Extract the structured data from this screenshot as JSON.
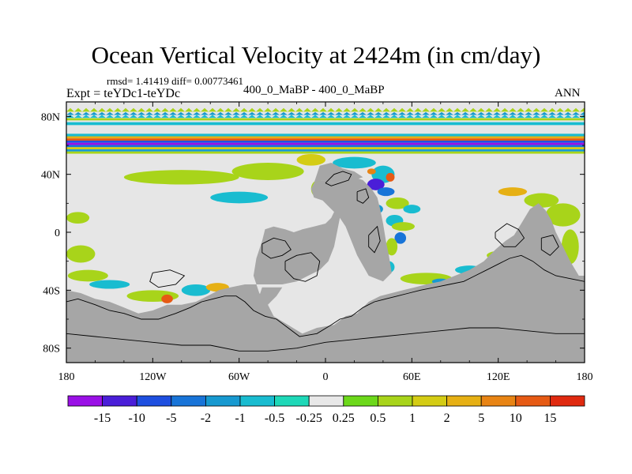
{
  "title": "Ocean Vertical Velocity at 2424m (in cm/day)",
  "stats": "rmsd= 1.41419 diff= 0.00773461",
  "expt": "Expt = teYDc1-teYDc",
  "center_label": "400_0_MaBP - 400_0_MaBP",
  "season": "ANN",
  "colors": {
    "land": "#a6a6a6",
    "ocean_neutral": "#e6e6e6",
    "coast": "#000000"
  },
  "chart_data": {
    "type": "heatmap",
    "title": "Ocean Vertical Velocity at 2424m (in cm/day)",
    "xlabel": "",
    "ylabel": "",
    "xlim": [
      -180,
      180
    ],
    "ylim": [
      -90,
      90
    ],
    "x_ticks": [
      {
        "value": -180,
        "label": "180"
      },
      {
        "value": -120,
        "label": "120W"
      },
      {
        "value": -60,
        "label": "60W"
      },
      {
        "value": 0,
        "label": "0"
      },
      {
        "value": 60,
        "label": "60E"
      },
      {
        "value": 120,
        "label": "120E"
      },
      {
        "value": 180,
        "label": "180"
      }
    ],
    "y_ticks": [
      {
        "value": 80,
        "label": "80N"
      },
      {
        "value": 40,
        "label": "40N"
      },
      {
        "value": 0,
        "label": "0"
      },
      {
        "value": -40,
        "label": "40S"
      },
      {
        "value": -80,
        "label": "80S"
      }
    ],
    "colorbar": {
      "levels": [
        "-15",
        "-10",
        "-5",
        "-2",
        "-1",
        "-0.5",
        "-0.25",
        "0.25",
        "0.5",
        "1",
        "2",
        "5",
        "10",
        "15"
      ],
      "colors": [
        "#9a10e6",
        "#4a1ed8",
        "#1e4fe0",
        "#1874d8",
        "#1799d0",
        "#19bcd0",
        "#1ed8b8",
        "#e8e8e8",
        "#6cd81a",
        "#a8d41a",
        "#d4cc14",
        "#e6b014",
        "#e88414",
        "#e65a14",
        "#e02a10"
      ]
    },
    "land_polygons": [
      [
        [
          -180,
          -90
        ],
        [
          180,
          -90
        ],
        [
          180,
          -30
        ],
        [
          176,
          -30
        ],
        [
          170,
          -20
        ],
        [
          165,
          -10
        ],
        [
          160,
          0
        ],
        [
          157,
          8
        ],
        [
          153,
          15
        ],
        [
          148,
          20
        ],
        [
          142,
          16
        ],
        [
          136,
          6
        ],
        [
          131,
          -2
        ],
        [
          125,
          -6
        ],
        [
          118,
          -12
        ],
        [
          110,
          -20
        ],
        [
          100,
          -26
        ],
        [
          90,
          -30
        ],
        [
          80,
          -34
        ],
        [
          70,
          -36
        ],
        [
          62,
          -38
        ],
        [
          54,
          -40
        ],
        [
          46,
          -42
        ],
        [
          38,
          -44
        ],
        [
          30,
          -48
        ],
        [
          22,
          -56
        ],
        [
          14,
          -58
        ],
        [
          6,
          -64
        ],
        [
          -6,
          -66
        ],
        [
          -16,
          -70
        ],
        [
          -26,
          -64
        ],
        [
          -36,
          -58
        ],
        [
          -40,
          -50
        ],
        [
          -46,
          -42
        ],
        [
          -50,
          -30
        ],
        [
          -48,
          -18
        ],
        [
          -44,
          -6
        ],
        [
          -42,
          2
        ],
        [
          -36,
          4
        ],
        [
          -28,
          2
        ],
        [
          -22,
          0
        ],
        [
          -16,
          2
        ],
        [
          -8,
          4
        ],
        [
          0,
          6
        ],
        [
          4,
          10
        ],
        [
          6,
          14
        ],
        [
          2,
          18
        ],
        [
          -2,
          22
        ],
        [
          -8,
          24
        ],
        [
          -10,
          30
        ],
        [
          -8,
          34
        ],
        [
          -2,
          36
        ],
        [
          6,
          34
        ],
        [
          14,
          36
        ],
        [
          20,
          38
        ],
        [
          26,
          36
        ],
        [
          32,
          30
        ],
        [
          36,
          24
        ],
        [
          38,
          16
        ],
        [
          40,
          6
        ],
        [
          42,
          -6
        ],
        [
          44,
          -16
        ],
        [
          46,
          -28
        ],
        [
          40,
          -34
        ],
        [
          30,
          -30
        ],
        [
          22,
          -16
        ],
        [
          18,
          -6
        ],
        [
          14,
          4
        ],
        [
          10,
          10
        ],
        [
          8,
          0
        ],
        [
          6,
          -10
        ],
        [
          2,
          -20
        ],
        [
          -4,
          -26
        ],
        [
          -12,
          -30
        ],
        [
          -20,
          -34
        ],
        [
          -30,
          -36
        ],
        [
          -42,
          -36
        ],
        [
          -56,
          -36
        ],
        [
          -66,
          -38
        ],
        [
          -74,
          -40
        ],
        [
          -82,
          -44
        ],
        [
          -90,
          -48
        ],
        [
          -100,
          -50
        ],
        [
          -110,
          -50
        ],
        [
          -120,
          -54
        ],
        [
          -130,
          -56
        ],
        [
          -140,
          -52
        ],
        [
          -150,
          -48
        ],
        [
          -160,
          -46
        ],
        [
          -170,
          -42
        ],
        [
          -180,
          -40
        ]
      ],
      [
        [
          -40,
          -50
        ],
        [
          -34,
          -44
        ],
        [
          -30,
          -38
        ],
        [
          -44,
          -38
        ],
        [
          -46,
          -44
        ]
      ],
      [
        [
          -8,
          34
        ],
        [
          -6,
          40
        ],
        [
          -4,
          46
        ],
        [
          4,
          48
        ],
        [
          12,
          44
        ],
        [
          20,
          42
        ],
        [
          26,
          38
        ],
        [
          20,
          36
        ],
        [
          14,
          36
        ],
        [
          6,
          34
        ],
        [
          -2,
          36
        ]
      ]
    ],
    "coastlines": [
      [
        [
          -180,
          -48
        ],
        [
          -172,
          -46
        ],
        [
          -160,
          -50
        ],
        [
          -150,
          -54
        ],
        [
          -140,
          -56
        ],
        [
          -128,
          -60
        ],
        [
          -116,
          -60
        ],
        [
          -104,
          -56
        ],
        [
          -94,
          -52
        ],
        [
          -86,
          -48
        ],
        [
          -78,
          -46
        ],
        [
          -70,
          -44
        ],
        [
          -62,
          -44
        ],
        [
          -56,
          -48
        ],
        [
          -50,
          -54
        ],
        [
          -42,
          -58
        ],
        [
          -34,
          -60
        ],
        [
          -26,
          -66
        ],
        [
          -18,
          -72
        ],
        [
          -6,
          -70
        ],
        [
          4,
          -64
        ],
        [
          10,
          -60
        ],
        [
          18,
          -58
        ],
        [
          26,
          -52
        ],
        [
          34,
          -48
        ],
        [
          42,
          -46
        ],
        [
          50,
          -44
        ],
        [
          58,
          -42
        ],
        [
          66,
          -40
        ],
        [
          76,
          -38
        ],
        [
          86,
          -36
        ],
        [
          96,
          -34
        ],
        [
          104,
          -30
        ],
        [
          112,
          -26
        ],
        [
          120,
          -22
        ],
        [
          128,
          -18
        ],
        [
          136,
          -16
        ],
        [
          144,
          -20
        ],
        [
          152,
          -26
        ],
        [
          160,
          -30
        ],
        [
          170,
          -32
        ],
        [
          180,
          -34
        ]
      ],
      [
        [
          -180,
          -70
        ],
        [
          -160,
          -72
        ],
        [
          -140,
          -74
        ],
        [
          -120,
          -76
        ],
        [
          -100,
          -78
        ],
        [
          -80,
          -78
        ],
        [
          -60,
          -82
        ],
        [
          -40,
          -82
        ],
        [
          -20,
          -80
        ],
        [
          0,
          -76
        ],
        [
          20,
          -74
        ],
        [
          40,
          -72
        ],
        [
          60,
          -70
        ],
        [
          80,
          -68
        ],
        [
          100,
          -66
        ],
        [
          120,
          -66
        ],
        [
          140,
          -68
        ],
        [
          160,
          -70
        ],
        [
          180,
          -70
        ]
      ],
      [
        [
          -28,
          -20
        ],
        [
          -20,
          -16
        ],
        [
          -10,
          -14
        ],
        [
          -4,
          -20
        ],
        [
          -6,
          -30
        ],
        [
          -14,
          -34
        ],
        [
          -22,
          -32
        ],
        [
          -28,
          -26
        ],
        [
          -28,
          -20
        ]
      ],
      [
        [
          -44,
          -8
        ],
        [
          -36,
          -4
        ],
        [
          -28,
          -6
        ],
        [
          -24,
          -12
        ],
        [
          -30,
          -16
        ],
        [
          -38,
          -18
        ],
        [
          -44,
          -14
        ],
        [
          -44,
          -8
        ]
      ],
      [
        [
          0,
          34
        ],
        [
          6,
          40
        ],
        [
          12,
          42
        ],
        [
          18,
          40
        ],
        [
          16,
          36
        ],
        [
          10,
          34
        ],
        [
          4,
          32
        ],
        [
          0,
          34
        ]
      ],
      [
        [
          22,
          28
        ],
        [
          28,
          30
        ],
        [
          30,
          24
        ],
        [
          26,
          20
        ],
        [
          22,
          22
        ],
        [
          22,
          28
        ]
      ],
      [
        [
          30,
          -2
        ],
        [
          36,
          4
        ],
        [
          38,
          -6
        ],
        [
          34,
          -14
        ],
        [
          30,
          -10
        ],
        [
          30,
          -2
        ]
      ],
      [
        [
          118,
          0
        ],
        [
          126,
          6
        ],
        [
          134,
          2
        ],
        [
          138,
          -4
        ],
        [
          132,
          -10
        ],
        [
          124,
          -10
        ],
        [
          118,
          -4
        ],
        [
          118,
          0
        ]
      ],
      [
        [
          150,
          -4
        ],
        [
          158,
          -2
        ],
        [
          162,
          -10
        ],
        [
          156,
          -16
        ],
        [
          150,
          -12
        ],
        [
          150,
          -4
        ]
      ],
      [
        [
          -120,
          -28
        ],
        [
          -108,
          -26
        ],
        [
          -98,
          -30
        ],
        [
          -104,
          -36
        ],
        [
          -116,
          -38
        ],
        [
          -122,
          -34
        ],
        [
          -120,
          -28
        ]
      ]
    ],
    "zonal_bands": [
      {
        "lat": 84.5,
        "height": 2.5,
        "level": "0.5",
        "zigzag": true
      },
      {
        "lat": 82,
        "height": 2,
        "level": "-1",
        "zigzag": true
      },
      {
        "lat": 80,
        "height": 2,
        "level": "-0.5",
        "zigzag": true
      },
      {
        "lat": 78,
        "height": 1.5,
        "level": "0.5",
        "zigzag": false
      },
      {
        "lat": 75,
        "height": 2,
        "level": "-0.5",
        "zigzag": false
      },
      {
        "lat": 67,
        "height": 2,
        "level": "-0.5",
        "zigzag": false
      },
      {
        "lat": 65.5,
        "height": 1.5,
        "level": "2",
        "zigzag": false
      },
      {
        "lat": 64,
        "height": 1.5,
        "level": "10",
        "zigzag": false
      },
      {
        "lat": 62.5,
        "height": 1.5,
        "level": "-5",
        "zigzag": false
      },
      {
        "lat": 61,
        "height": 1.5,
        "level": "-15",
        "zigzag": false
      },
      {
        "lat": 59.5,
        "height": 1.5,
        "level": "-2",
        "zigzag": false
      },
      {
        "lat": 58,
        "height": 1.5,
        "level": "1",
        "zigzag": false
      },
      {
        "lat": 56.5,
        "height": 1.5,
        "level": "-1",
        "zigzag": false
      },
      {
        "lat": 55,
        "height": 1.5,
        "level": "0.5",
        "zigzag": false
      }
    ],
    "patches": [
      {
        "lon": -100,
        "lat": 38,
        "rx": 40,
        "ry": 5,
        "level": "0.5"
      },
      {
        "lon": -40,
        "lat": 42,
        "rx": 25,
        "ry": 6,
        "level": "0.5"
      },
      {
        "lon": -10,
        "lat": 50,
        "rx": 10,
        "ry": 4,
        "level": "1"
      },
      {
        "lon": 20,
        "lat": 48,
        "rx": 15,
        "ry": 4,
        "level": "-0.5"
      },
      {
        "lon": -5,
        "lat": 30,
        "rx": 5,
        "ry": 6,
        "level": "0.5"
      },
      {
        "lon": -60,
        "lat": 24,
        "rx": 20,
        "ry": 4,
        "level": "-0.5"
      },
      {
        "lon": 40,
        "lat": 40,
        "rx": 8,
        "ry": 6,
        "level": "-0.5"
      },
      {
        "lon": 35,
        "lat": 33,
        "rx": 6,
        "ry": 4,
        "level": "-10"
      },
      {
        "lon": 45,
        "lat": 38,
        "rx": 3,
        "ry": 3,
        "level": "10"
      },
      {
        "lon": 32,
        "lat": 42,
        "rx": 3,
        "ry": 2,
        "level": "5"
      },
      {
        "lon": 42,
        "lat": 28,
        "rx": 6,
        "ry": 3,
        "level": "-2"
      },
      {
        "lon": 28,
        "lat": 22,
        "rx": 5,
        "ry": 4,
        "level": "-5"
      },
      {
        "lon": 36,
        "lat": 16,
        "rx": 4,
        "ry": 3,
        "level": "-1"
      },
      {
        "lon": 50,
        "lat": 20,
        "rx": 8,
        "ry": 4,
        "level": "0.5"
      },
      {
        "lon": 60,
        "lat": 16,
        "rx": 6,
        "ry": 3,
        "level": "-0.5"
      },
      {
        "lon": 48,
        "lat": 8,
        "rx": 6,
        "ry": 4,
        "level": "-0.5"
      },
      {
        "lon": 54,
        "lat": 4,
        "rx": 8,
        "ry": 3,
        "level": "0.5"
      },
      {
        "lon": 52,
        "lat": -4,
        "rx": 4,
        "ry": 4,
        "level": "-2"
      },
      {
        "lon": 46,
        "lat": -10,
        "rx": 4,
        "ry": 6,
        "level": "0.5"
      },
      {
        "lon": 44,
        "lat": -24,
        "rx": 4,
        "ry": 4,
        "level": "-0.5"
      },
      {
        "lon": 130,
        "lat": 28,
        "rx": 10,
        "ry": 3,
        "level": "2"
      },
      {
        "lon": 150,
        "lat": 22,
        "rx": 12,
        "ry": 5,
        "level": "0.5"
      },
      {
        "lon": 165,
        "lat": 12,
        "rx": 12,
        "ry": 8,
        "level": "0.5"
      },
      {
        "lon": 170,
        "lat": -10,
        "rx": 6,
        "ry": 12,
        "level": "0.5"
      },
      {
        "lon": -172,
        "lat": 10,
        "rx": 8,
        "ry": 4,
        "level": "0.5"
      },
      {
        "lon": -170,
        "lat": -15,
        "rx": 10,
        "ry": 6,
        "level": "0.5"
      },
      {
        "lon": -165,
        "lat": -30,
        "rx": 14,
        "ry": 4,
        "level": "0.5"
      },
      {
        "lon": -150,
        "lat": -36,
        "rx": 14,
        "ry": 3,
        "level": "-0.5"
      },
      {
        "lon": -120,
        "lat": -44,
        "rx": 18,
        "ry": 4,
        "level": "0.5"
      },
      {
        "lon": -110,
        "lat": -46,
        "rx": 4,
        "ry": 3,
        "level": "10"
      },
      {
        "lon": -90,
        "lat": -40,
        "rx": 10,
        "ry": 4,
        "level": "-0.5"
      },
      {
        "lon": -75,
        "lat": -38,
        "rx": 8,
        "ry": 3,
        "level": "2"
      },
      {
        "lon": -20,
        "lat": -22,
        "rx": 6,
        "ry": 4,
        "level": "0.5"
      },
      {
        "lon": 70,
        "lat": -32,
        "rx": 18,
        "ry": 4,
        "level": "0.5"
      },
      {
        "lon": 80,
        "lat": -34,
        "rx": 6,
        "ry": 2,
        "level": "-1"
      },
      {
        "lon": 100,
        "lat": -26,
        "rx": 10,
        "ry": 3,
        "level": "-0.5"
      },
      {
        "lon": 120,
        "lat": -16,
        "rx": 8,
        "ry": 3,
        "level": "0.5"
      }
    ]
  }
}
